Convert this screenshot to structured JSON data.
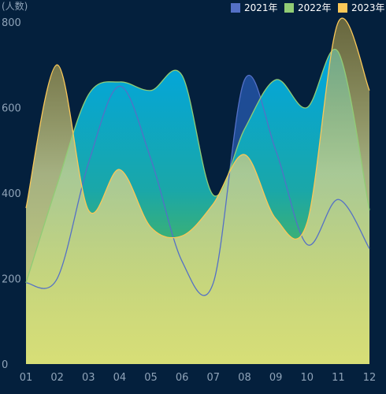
{
  "chart_data": {
    "type": "area",
    "y_unit_label": "(人数)",
    "categories": [
      "01",
      "02",
      "03",
      "04",
      "05",
      "06",
      "07",
      "08",
      "09",
      "10",
      "11",
      "12"
    ],
    "ylim": [
      0,
      800
    ],
    "yticks": [
      0,
      200,
      400,
      600,
      800
    ],
    "legend_position": "top-right",
    "grid": false,
    "smooth": true,
    "series": [
      {
        "name": "2021年",
        "color": "#5470c6",
        "values": [
          190,
          200,
          470,
          650,
          480,
          240,
          190,
          665,
          500,
          280,
          385,
          270
        ]
      },
      {
        "name": "2022年",
        "color": "#91cc75",
        "values": [
          190,
          420,
          630,
          660,
          640,
          675,
          395,
          550,
          665,
          600,
          730,
          360
        ]
      },
      {
        "name": "2023年",
        "color": "#fac858",
        "values": [
          365,
          700,
          360,
          455,
          320,
          300,
          375,
          490,
          340,
          330,
          800,
          640
        ]
      }
    ]
  }
}
